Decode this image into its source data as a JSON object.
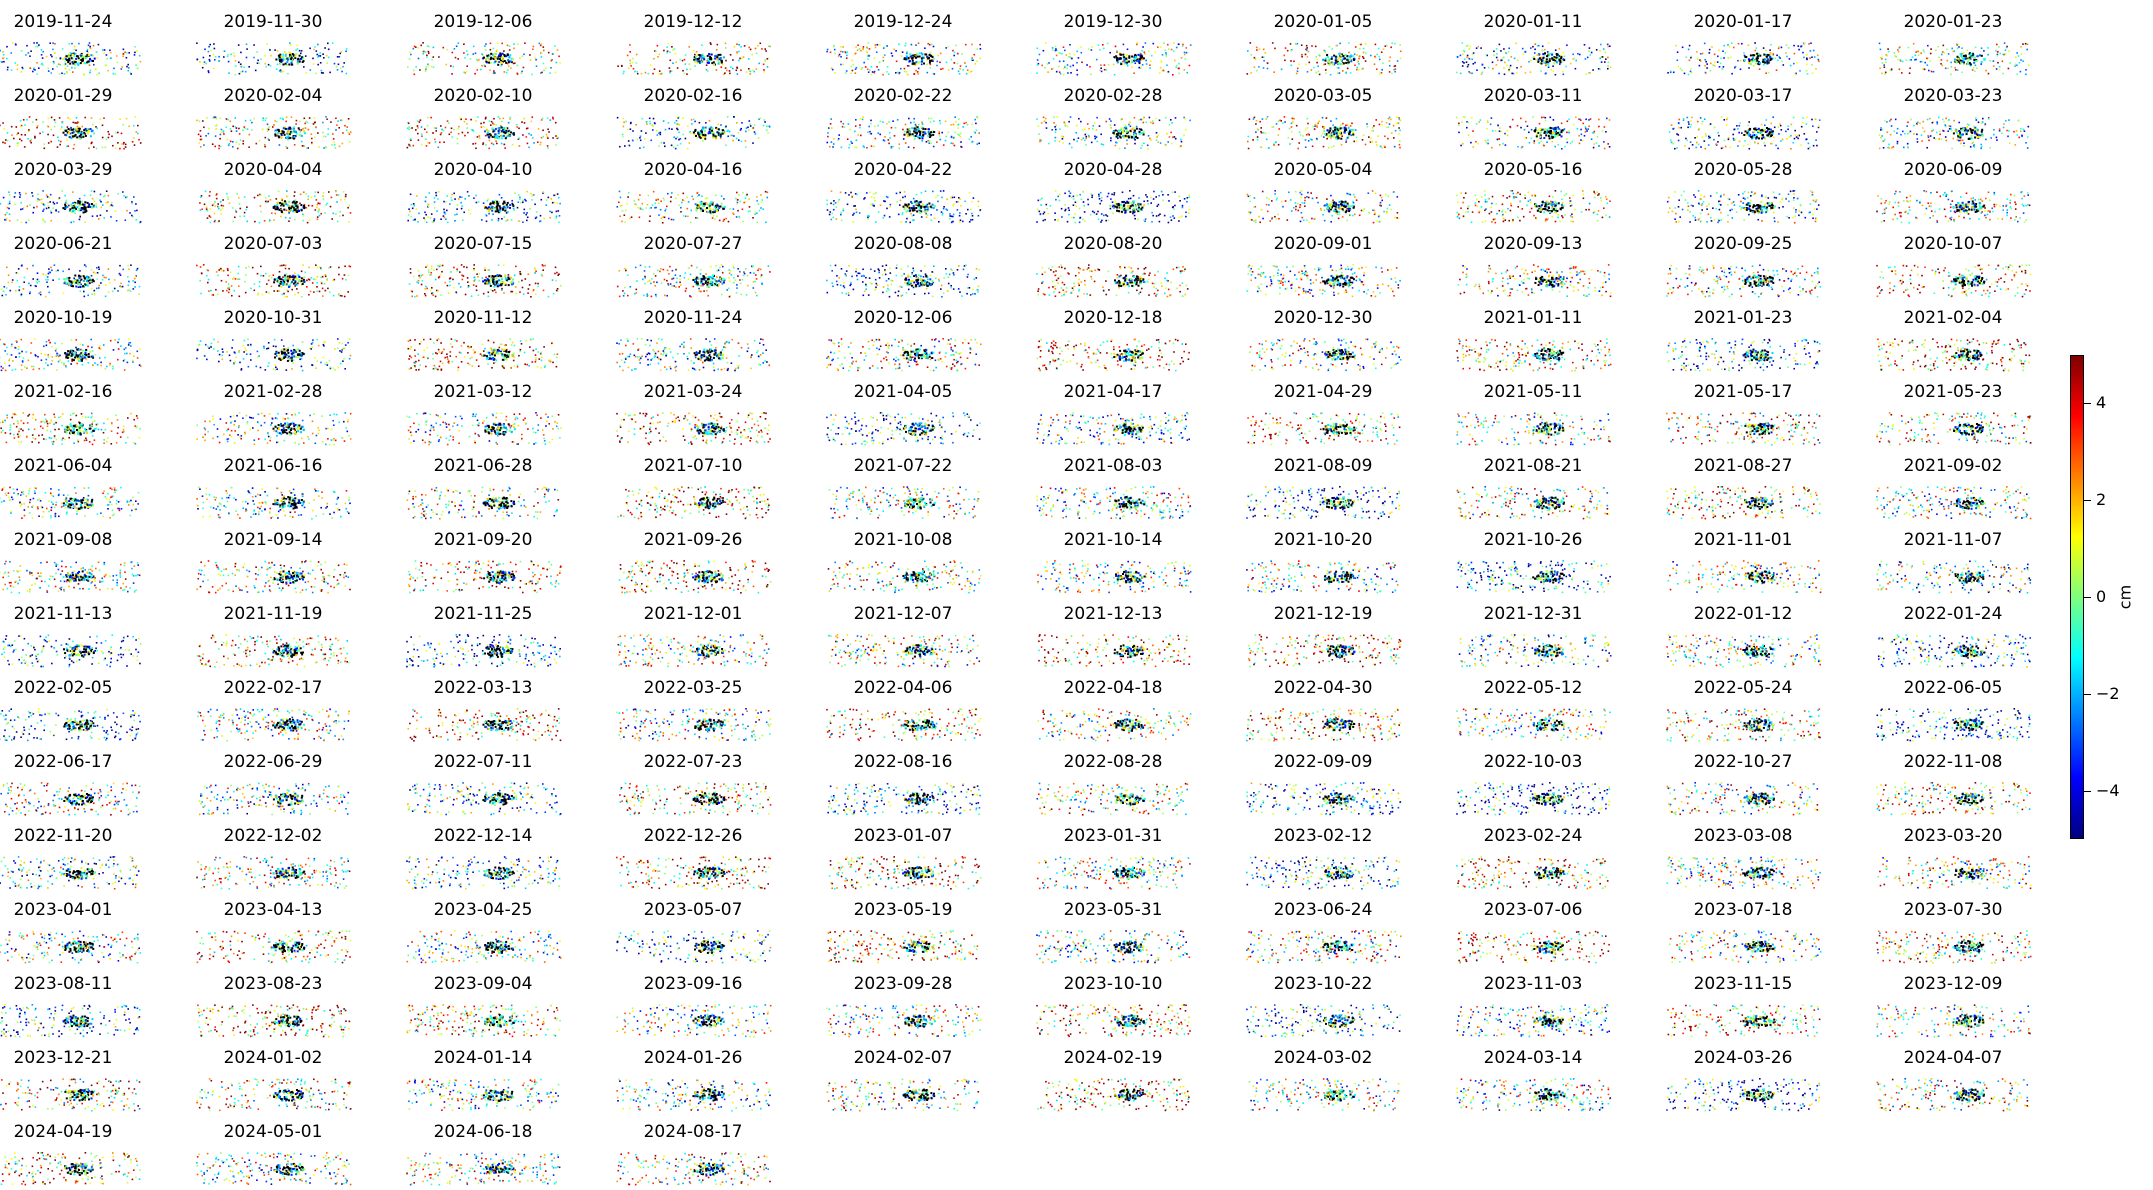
{
  "chart_data": {
    "type": "scatter",
    "layout": "small multiples, 10 columns",
    "colormap": "jet",
    "grid": false,
    "axes_visible": false,
    "colorbar": {
      "label": "cm",
      "range": [
        -5,
        5
      ],
      "ticks": [
        -4,
        -2,
        0,
        2,
        4
      ],
      "tick_labels": [
        "−4",
        "−2",
        "0",
        "2",
        "4"
      ]
    },
    "panels": [
      "2019-11-24",
      "2019-11-30",
      "2019-12-06",
      "2019-12-12",
      "2019-12-24",
      "2019-12-30",
      "2020-01-05",
      "2020-01-11",
      "2020-01-17",
      "2020-01-23",
      "2020-01-29",
      "2020-02-04",
      "2020-02-10",
      "2020-02-16",
      "2020-02-22",
      "2020-02-28",
      "2020-03-05",
      "2020-03-11",
      "2020-03-17",
      "2020-03-23",
      "2020-03-29",
      "2020-04-04",
      "2020-04-10",
      "2020-04-16",
      "2020-04-22",
      "2020-04-28",
      "2020-05-04",
      "2020-05-16",
      "2020-05-28",
      "2020-06-09",
      "2020-06-21",
      "2020-07-03",
      "2020-07-15",
      "2020-07-27",
      "2020-08-08",
      "2020-08-20",
      "2020-09-01",
      "2020-09-13",
      "2020-09-25",
      "2020-10-07",
      "2020-10-19",
      "2020-10-31",
      "2020-11-12",
      "2020-11-24",
      "2020-12-06",
      "2020-12-18",
      "2020-12-30",
      "2021-01-11",
      "2021-01-23",
      "2021-02-04",
      "2021-02-16",
      "2021-02-28",
      "2021-03-12",
      "2021-03-24",
      "2021-04-05",
      "2021-04-17",
      "2021-04-29",
      "2021-05-11",
      "2021-05-17",
      "2021-05-23",
      "2021-06-04",
      "2021-06-16",
      "2021-06-28",
      "2021-07-10",
      "2021-07-22",
      "2021-08-03",
      "2021-08-09",
      "2021-08-21",
      "2021-08-27",
      "2021-09-02",
      "2021-09-08",
      "2021-09-14",
      "2021-09-20",
      "2021-09-26",
      "2021-10-08",
      "2021-10-14",
      "2021-10-20",
      "2021-10-26",
      "2021-11-01",
      "2021-11-07",
      "2021-11-13",
      "2021-11-19",
      "2021-11-25",
      "2021-12-01",
      "2021-12-07",
      "2021-12-13",
      "2021-12-19",
      "2021-12-31",
      "2022-01-12",
      "2022-01-24",
      "2022-02-05",
      "2022-02-17",
      "2022-03-13",
      "2022-03-25",
      "2022-04-06",
      "2022-04-18",
      "2022-04-30",
      "2022-05-12",
      "2022-05-24",
      "2022-06-05",
      "2022-06-17",
      "2022-06-29",
      "2022-07-11",
      "2022-07-23",
      "2022-08-16",
      "2022-08-28",
      "2022-09-09",
      "2022-10-03",
      "2022-10-27",
      "2022-11-08",
      "2022-11-20",
      "2022-12-02",
      "2022-12-14",
      "2022-12-26",
      "2023-01-07",
      "2023-01-31",
      "2023-02-12",
      "2023-02-24",
      "2023-03-08",
      "2023-03-20",
      "2023-04-01",
      "2023-04-13",
      "2023-04-25",
      "2023-05-07",
      "2023-05-19",
      "2023-05-31",
      "2023-06-24",
      "2023-07-06",
      "2023-07-18",
      "2023-07-30",
      "2023-08-11",
      "2023-08-23",
      "2023-09-04",
      "2023-09-16",
      "2023-09-28",
      "2023-10-10",
      "2023-10-22",
      "2023-11-03",
      "2023-11-15",
      "2023-12-09",
      "2023-12-21",
      "2024-01-02",
      "2024-01-14",
      "2024-01-26",
      "2024-02-07",
      "2024-02-19",
      "2024-03-02",
      "2024-03-14",
      "2024-03-26",
      "2024-04-07",
      "2024-04-19",
      "2024-05-01",
      "2024-06-18",
      "2024-08-17"
    ]
  }
}
